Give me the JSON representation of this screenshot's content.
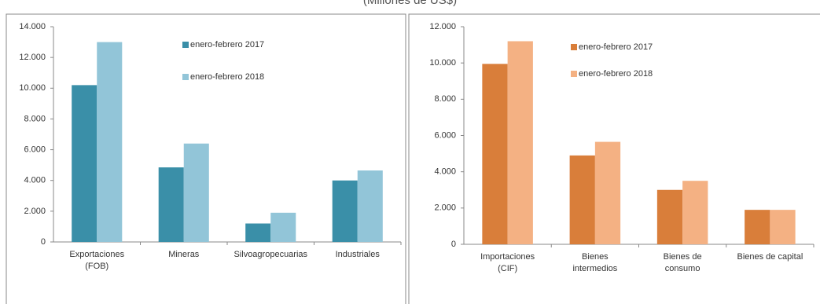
{
  "title": "(Millones de US$)",
  "chart_data": [
    {
      "type": "bar",
      "categories": [
        "Exportaciones\n(FOB)",
        "Mineras",
        "Silvoagropecuarias",
        "Industriales"
      ],
      "series": [
        {
          "name": "enero-febrero 2017",
          "color": "#3a8fa8",
          "values": [
            10200,
            4850,
            1200,
            4000
          ]
        },
        {
          "name": "enero-febrero 2018",
          "color": "#92c5d8",
          "values": [
            13000,
            6400,
            1900,
            4650
          ]
        }
      ],
      "ylim": [
        0,
        14000
      ],
      "yticks": [
        0,
        {
          "value": 2000,
          "label": "2.000"
        },
        {
          "value": 4000,
          "label": "4.000"
        },
        {
          "value": 6000,
          "label": "6.000"
        },
        {
          "value": 8000,
          "label": "8.000"
        },
        {
          "value": 10000,
          "label": "10.000"
        },
        {
          "value": 12000,
          "label": "12.000"
        },
        {
          "value": 14000,
          "label": "14.000"
        }
      ]
    },
    {
      "type": "bar",
      "categories": [
        "Importaciones\n(CIF)",
        "Bienes\nintermedios",
        "Bienes de\nconsumo",
        "Bienes de capital"
      ],
      "series": [
        {
          "name": "enero-febrero 2017",
          "color": "#d97e3a",
          "values": [
            9950,
            4900,
            3000,
            1900
          ]
        },
        {
          "name": "enero-febrero 2018",
          "color": "#f4b183",
          "values": [
            11200,
            5650,
            3500,
            1900
          ]
        }
      ],
      "ylim": [
        0,
        12000
      ],
      "yticks": [
        0,
        {
          "value": 2000,
          "label": "2.000"
        },
        {
          "value": 4000,
          "label": "4.000"
        },
        {
          "value": 6000,
          "label": "6.000"
        },
        {
          "value": 8000,
          "label": "8.000"
        },
        {
          "value": 10000,
          "label": "10.000"
        },
        {
          "value": 12000,
          "label": "12.000"
        }
      ]
    }
  ]
}
